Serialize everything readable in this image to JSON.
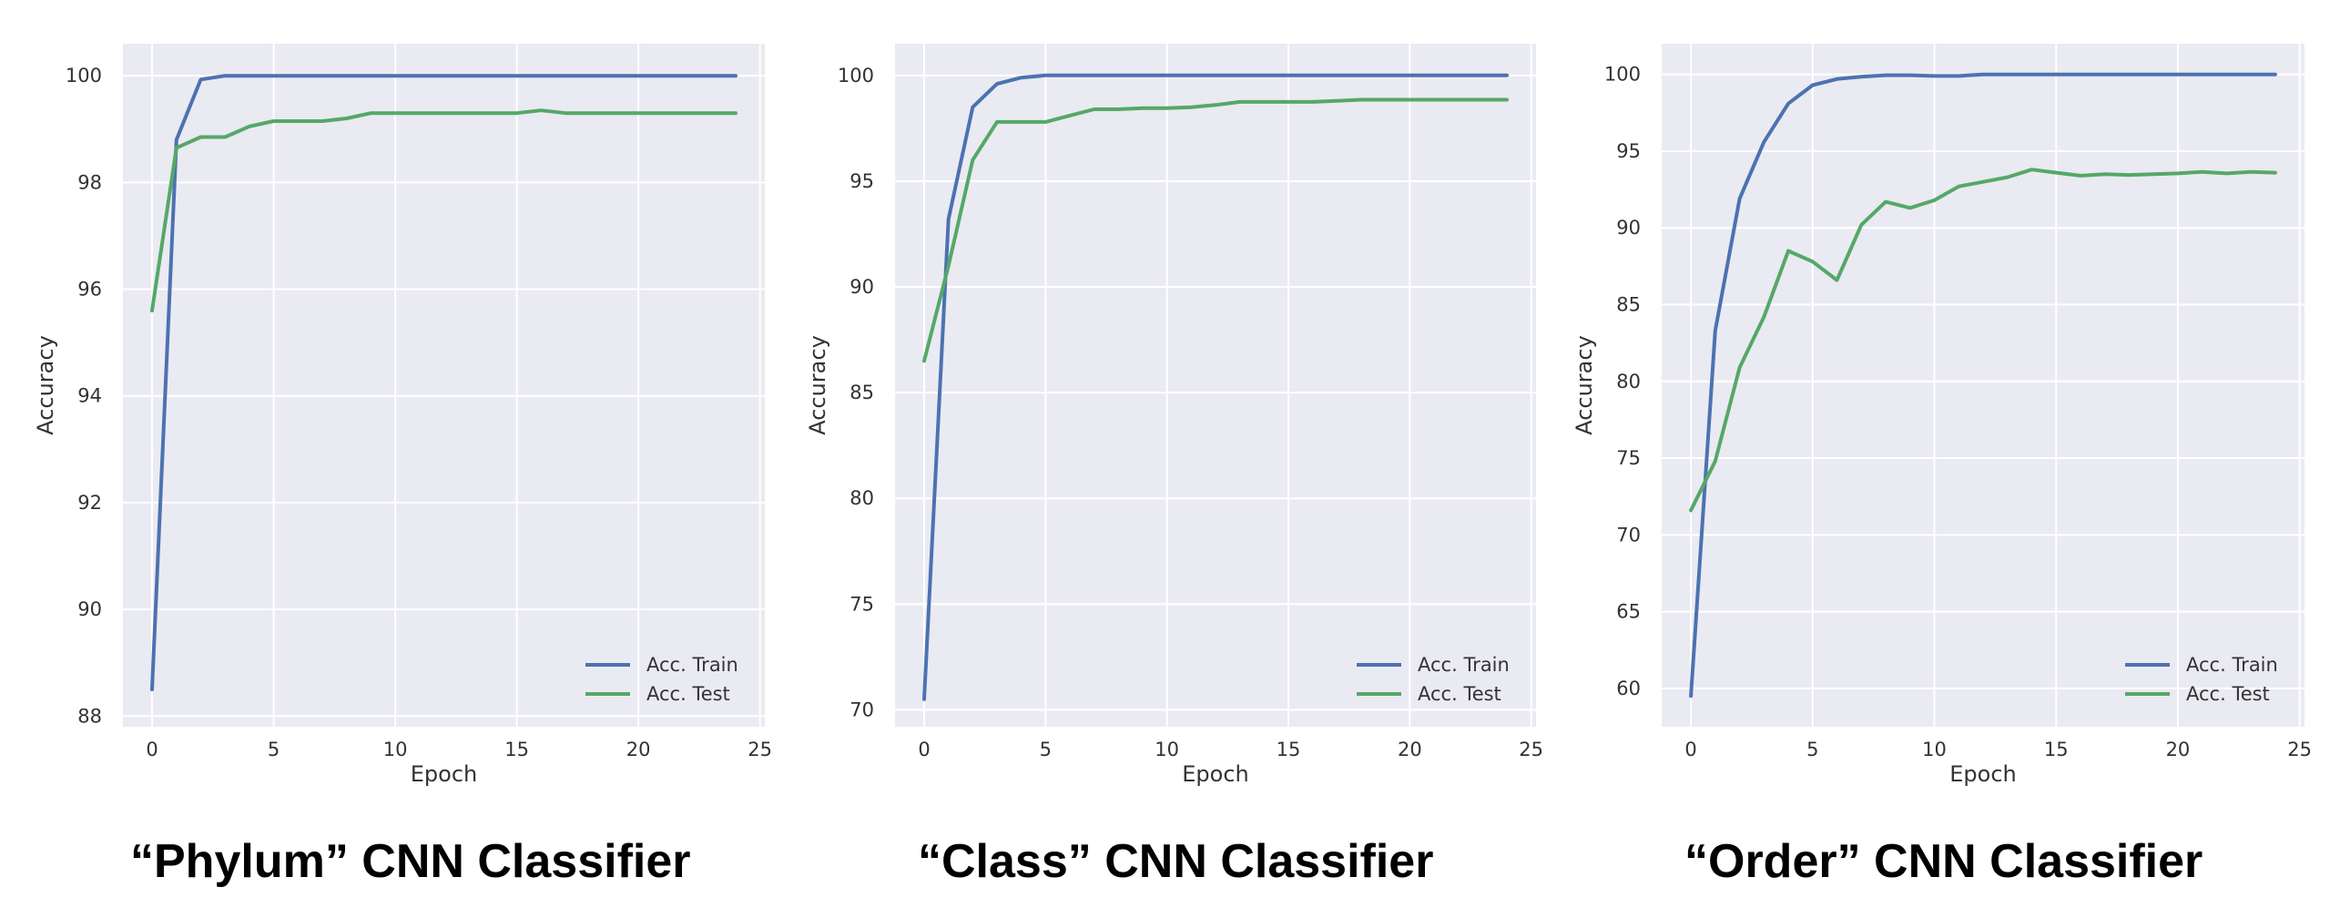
{
  "chart_data": [
    {
      "type": "line",
      "caption": "“Phylum” CNN Classifier",
      "xlabel": "Epoch",
      "ylabel": "Accuracy",
      "xlim": [
        -1.2,
        25.2
      ],
      "ylim": [
        87.8,
        100.6
      ],
      "xticks": [
        0,
        5,
        10,
        15,
        20,
        25
      ],
      "yticks": [
        88,
        90,
        92,
        94,
        96,
        98,
        100
      ],
      "grid": true,
      "legend": "lower-right",
      "x": [
        0,
        1,
        2,
        3,
        4,
        5,
        6,
        7,
        8,
        9,
        10,
        11,
        12,
        13,
        14,
        15,
        16,
        17,
        18,
        19,
        20,
        21,
        22,
        23,
        24
      ],
      "series": [
        {
          "name": "Acc. Train",
          "color": "#4c72b0",
          "values": [
            88.5,
            98.8,
            99.93,
            100,
            100,
            100,
            100,
            100,
            100,
            100,
            100,
            100,
            100,
            100,
            100,
            100,
            100,
            100,
            100,
            100,
            100,
            100,
            100,
            100,
            100
          ]
        },
        {
          "name": "Acc. Test",
          "color": "#55a868",
          "values": [
            95.6,
            98.65,
            98.85,
            98.85,
            99.05,
            99.15,
            99.15,
            99.15,
            99.2,
            99.3,
            99.3,
            99.3,
            99.3,
            99.3,
            99.3,
            99.3,
            99.35,
            99.3,
            99.3,
            99.3,
            99.3,
            99.3,
            99.3,
            99.3,
            99.3
          ]
        }
      ]
    },
    {
      "type": "line",
      "caption": "“Class” CNN Classifier",
      "xlabel": "Epoch",
      "ylabel": "Accuracy",
      "xlim": [
        -1.2,
        25.2
      ],
      "ylim": [
        69.2,
        101.5
      ],
      "xticks": [
        0,
        5,
        10,
        15,
        20,
        25
      ],
      "yticks": [
        70,
        75,
        80,
        85,
        90,
        95,
        100
      ],
      "grid": true,
      "legend": "lower-right",
      "x": [
        0,
        1,
        2,
        3,
        4,
        5,
        6,
        7,
        8,
        9,
        10,
        11,
        12,
        13,
        14,
        15,
        16,
        17,
        18,
        19,
        20,
        21,
        22,
        23,
        24
      ],
      "series": [
        {
          "name": "Acc. Train",
          "color": "#4c72b0",
          "values": [
            70.5,
            93.2,
            98.5,
            99.6,
            99.9,
            100,
            100,
            100,
            100,
            100,
            100,
            100,
            100,
            100,
            100,
            100,
            100,
            100,
            100,
            100,
            100,
            100,
            100,
            100,
            100
          ]
        },
        {
          "name": "Acc. Test",
          "color": "#55a868",
          "values": [
            86.5,
            91.0,
            96.0,
            97.8,
            97.8,
            97.8,
            98.1,
            98.4,
            98.4,
            98.45,
            98.45,
            98.5,
            98.6,
            98.75,
            98.75,
            98.75,
            98.75,
            98.8,
            98.85,
            98.85,
            98.85,
            98.85,
            98.85,
            98.85,
            98.85
          ]
        }
      ]
    },
    {
      "type": "line",
      "caption": "“Order” CNN Classifier",
      "xlabel": "Epoch",
      "ylabel": "Accuracy",
      "xlim": [
        -1.2,
        25.2
      ],
      "ylim": [
        57.5,
        102.0
      ],
      "xticks": [
        0,
        5,
        10,
        15,
        20,
        25
      ],
      "yticks": [
        60,
        65,
        70,
        75,
        80,
        85,
        90,
        95,
        100
      ],
      "grid": true,
      "legend": "lower-right",
      "x": [
        0,
        1,
        2,
        3,
        4,
        5,
        6,
        7,
        8,
        9,
        10,
        11,
        12,
        13,
        14,
        15,
        16,
        17,
        18,
        19,
        20,
        21,
        22,
        23,
        24
      ],
      "series": [
        {
          "name": "Acc. Train",
          "color": "#4c72b0",
          "values": [
            59.5,
            83.3,
            91.9,
            95.6,
            98.1,
            99.3,
            99.7,
            99.85,
            99.95,
            99.95,
            99.9,
            99.9,
            100,
            100,
            100,
            100,
            100,
            100,
            100,
            100,
            100,
            100,
            100,
            100,
            100
          ]
        },
        {
          "name": "Acc. Test",
          "color": "#55a868",
          "values": [
            71.6,
            74.8,
            80.9,
            84.2,
            88.5,
            87.8,
            86.6,
            90.2,
            91.7,
            91.3,
            91.8,
            92.7,
            93.0,
            93.3,
            93.8,
            93.6,
            93.4,
            93.5,
            93.45,
            93.5,
            93.55,
            93.65,
            93.55,
            93.65,
            93.6
          ]
        }
      ]
    }
  ]
}
